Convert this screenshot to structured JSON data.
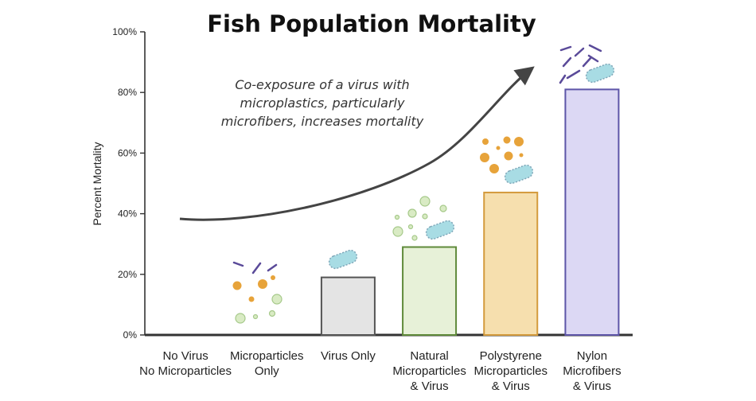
{
  "chart_data": {
    "type": "bar",
    "title": "Fish Population Mortality",
    "ylabel": "Percent Mortality",
    "xlabel": "",
    "ylim": [
      0,
      100
    ],
    "yticks": [
      0,
      20,
      40,
      60,
      80,
      100
    ],
    "ytick_labels": [
      "0%",
      "20%",
      "40%",
      "60%",
      "80%",
      "100%"
    ],
    "categories": [
      [
        "No Virus",
        "No Microparticles"
      ],
      [
        "Microparticles",
        "Only"
      ],
      [
        "Virus Only"
      ],
      [
        "Natural",
        "Microparticles",
        "& Virus"
      ],
      [
        "Polystyrene",
        "Microparticles",
        "& Virus"
      ],
      [
        "Nylon",
        "Microfibers",
        "& Virus"
      ]
    ],
    "values": [
      0,
      0,
      19,
      29,
      47,
      81
    ],
    "bar_fills": [
      "#ffffff",
      "#ffffff",
      "#e4e4e4",
      "#e7f1d8",
      "#f6dfae",
      "#dcd8f4"
    ],
    "bar_strokes": [
      "#555555",
      "#555555",
      "#555555",
      "#5f8a3a",
      "#d39a3c",
      "#5d55a8"
    ],
    "annotation": [
      "Co-exposure of a virus with",
      "microplastics, particularly",
      "microfibers, increases mortality"
    ],
    "grid": false,
    "legend": "none",
    "colors": {
      "axis": "#333333",
      "arrow": "#444444",
      "virus_fill": "#a8dce4",
      "virus_outline": "#7fa6b8",
      "orange_particle": "#e7a33a",
      "green_particle": "#d9ebc4",
      "green_particle_outline": "#a6c98a",
      "purple_fiber": "#5a4a99"
    },
    "icons": [
      "virus-icon",
      "microparticle-icon",
      "microfiber-icon"
    ]
  }
}
